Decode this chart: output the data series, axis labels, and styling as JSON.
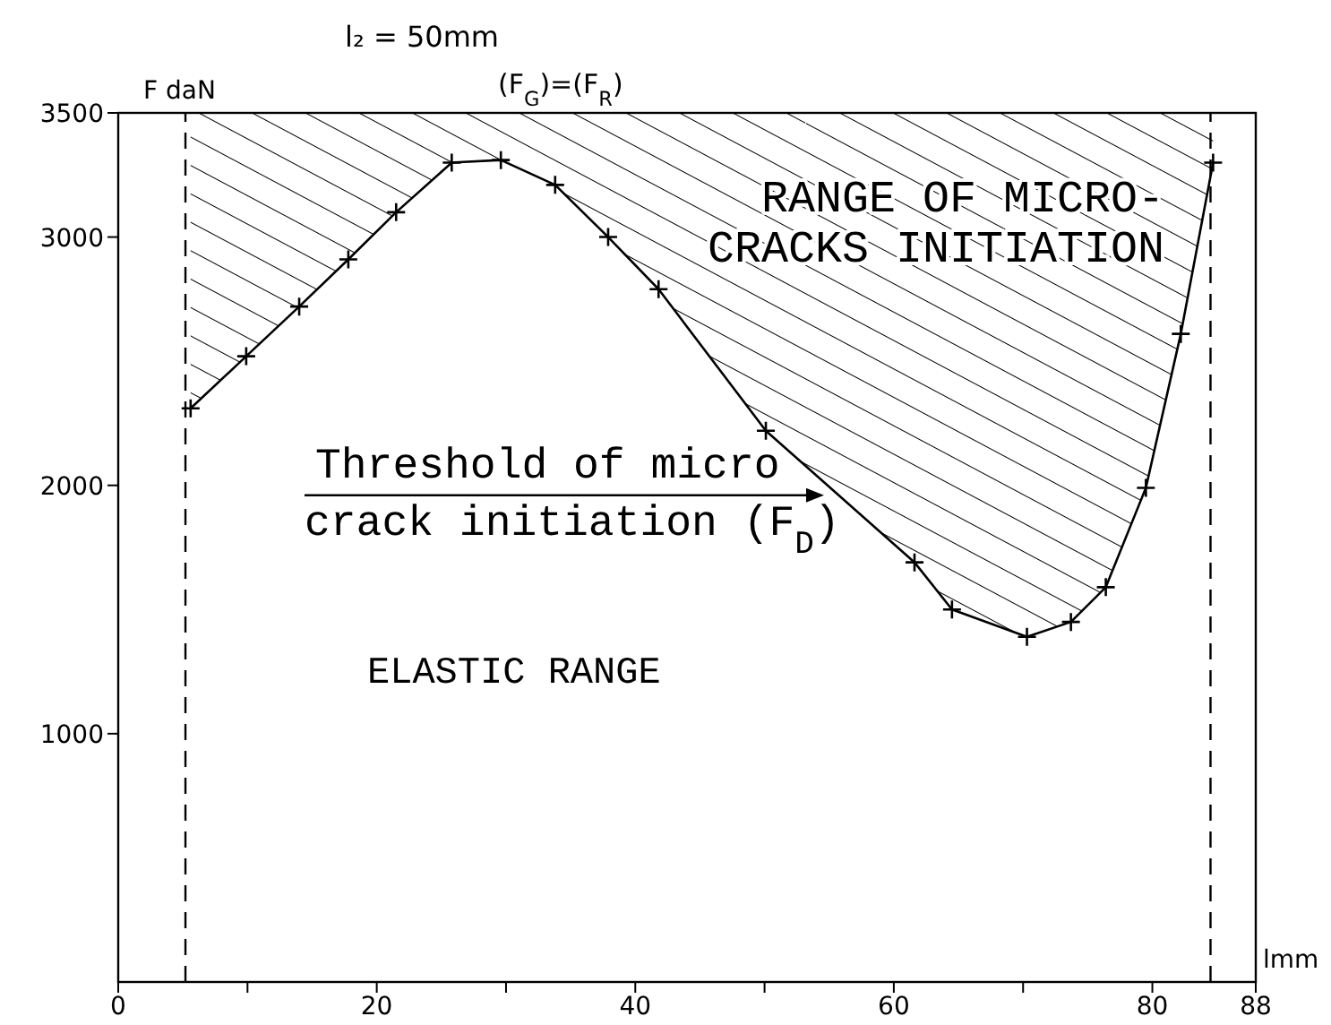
{
  "chart_data": {
    "type": "line",
    "title": "l₂ = 50mm",
    "xlabel": "lmm",
    "ylabel": "F daN",
    "x": [
      5.6,
      9.9,
      14.0,
      17.8,
      21.5,
      25.8,
      29.6,
      33.8,
      37.9,
      41.8,
      50.1,
      61.6,
      64.5,
      70.3,
      73.7,
      76.4,
      79.5,
      82.2,
      84.7
    ],
    "series": [
      {
        "color": "#000000",
        "values": [
          2310,
          2520,
          2720,
          2910,
          3100,
          3300,
          3310,
          3210,
          3000,
          2790,
          2220,
          1690,
          1500,
          1390,
          1450,
          1590,
          1990,
          2610,
          3300
        ]
      }
    ],
    "xlim": [
      0,
      88
    ],
    "ylim": [
      0,
      3500
    ],
    "xticks": [
      0,
      {
        "value": 10,
        "label": null
      },
      20,
      {
        "value": 30,
        "label": null
      },
      40,
      {
        "value": 50,
        "label": null
      },
      60,
      {
        "value": 70,
        "label": null
      },
      80,
      88
    ],
    "yticks": [
      1000,
      2000,
      3000,
      3500
    ],
    "marker": "cross",
    "line_style": "solid",
    "ref_lines": [
      {
        "axis": "x",
        "value": 5.2,
        "line_style": "dashed",
        "color": "#000000"
      },
      {
        "axis": "x",
        "value": 84.5,
        "line_style": "dashed",
        "color": "#000000"
      }
    ],
    "annotations": [
      "(F$_{G}$)=(F$_{R}$)",
      "RANGE OF MICRO-\nCRACKS INITIATION",
      {
        "text": "Threshold of micro\ncrack initiation (F$_{D}$)",
        "x": 54.6,
        "y": 1960
      },
      "ELASTIC RANGE"
    ]
  }
}
